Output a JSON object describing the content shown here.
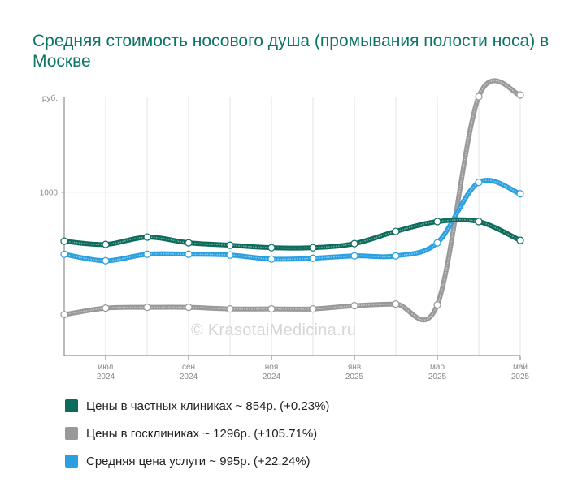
{
  "title": "Средняя стоимость носового душа (промывания полости носа) в Москве",
  "watermark": "© KrasotaiMedicina.ru",
  "chart_data": {
    "type": "line",
    "title": "Средняя стоимость носового душа (промывания полости носа) в Москве",
    "ylabel": "руб.",
    "ylim": [
      0,
      1580
    ],
    "yticks": [
      {
        "value": 1000,
        "label": "1000"
      }
    ],
    "grid": true,
    "x_ticks": [
      {
        "index": 1,
        "month": "июл",
        "year": "2024"
      },
      {
        "index": 3,
        "month": "сен",
        "year": "2024"
      },
      {
        "index": 5,
        "month": "ноя",
        "year": "2024"
      },
      {
        "index": 7,
        "month": "янв",
        "year": "2025"
      },
      {
        "index": 9,
        "month": "мар",
        "year": "2025"
      },
      {
        "index": 11,
        "month": "май",
        "year": "2025"
      }
    ],
    "x": [
      "2024-06",
      "2024-07",
      "2024-08",
      "2024-09",
      "2024-10",
      "2024-11",
      "2024-12",
      "2025-01",
      "2025-02",
      "2025-03",
      "2025-04",
      "2025-05"
    ],
    "legend_position": "bottom",
    "series": [
      {
        "name": "Цены в частных клиниках",
        "summary": "Цены в частных клиниках ~ 854р. (+0.23%)",
        "color": "#0c6b5a",
        "values": [
          700,
          680,
          725,
          690,
          675,
          660,
          660,
          685,
          760,
          820,
          820,
          705
        ]
      },
      {
        "name": "Цены в госклиниках",
        "summary": "Цены в госклиниках ~ 1296р. (+105.71%)",
        "color": "#999999",
        "values": [
          250,
          290,
          295,
          295,
          285,
          285,
          285,
          305,
          315,
          310,
          1585,
          1595
        ]
      },
      {
        "name": "Средняя цена услуги",
        "summary": "Средняя цена услуги ~ 995р. (+22.24%)",
        "color": "#2ba0e0",
        "values": [
          620,
          580,
          620,
          620,
          615,
          590,
          595,
          610,
          610,
          690,
          1060,
          990
        ]
      }
    ]
  }
}
